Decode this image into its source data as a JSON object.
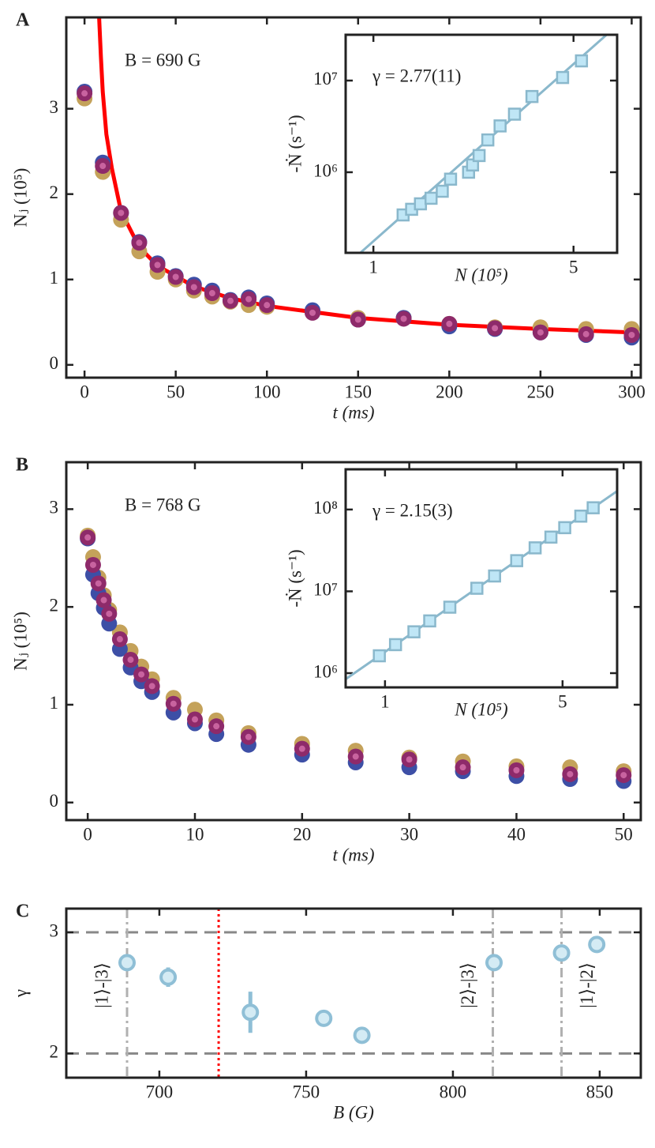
{
  "chart_data": [
    {
      "type": "scatter",
      "panel": "A",
      "annotation": "B = 690 G",
      "xlabel": "t (ms)",
      "ylabel": "Nⱼ (10⁵)",
      "xlim": [
        -10,
        305
      ],
      "ylim": [
        -0.15,
        4.07
      ],
      "xticks": [
        0,
        50,
        100,
        150,
        200,
        250,
        300
      ],
      "yticks": [
        0,
        1,
        2,
        3
      ],
      "series": [
        {
          "style": "line",
          "color": "#ff0000",
          "x": [
            8,
            9,
            10,
            12,
            15,
            20,
            30,
            40,
            60,
            80,
            100,
            150,
            200,
            250,
            300
          ],
          "values": [
            4.07,
            3.6,
            3.2,
            2.7,
            2.3,
            1.8,
            1.38,
            1.16,
            0.92,
            0.78,
            0.69,
            0.55,
            0.47,
            0.42,
            0.38
          ]
        },
        {
          "marker": "circle",
          "color": "#c4a25a",
          "x": [
            0,
            10,
            20,
            30,
            40,
            50,
            60,
            70,
            80,
            90,
            100,
            125,
            150,
            175,
            200,
            225,
            250,
            275,
            300
          ],
          "values": [
            3.12,
            2.26,
            1.7,
            1.33,
            1.09,
            1.0,
            0.87,
            0.8,
            0.74,
            0.7,
            0.68,
            0.62,
            0.55,
            0.55,
            0.48,
            0.44,
            0.44,
            0.42,
            0.42
          ]
        },
        {
          "marker": "circle",
          "color": "#3d4fa6",
          "x": [
            0,
            10,
            20,
            30,
            40,
            50,
            60,
            70,
            80,
            90,
            100,
            125,
            150,
            175,
            200,
            225,
            250,
            275,
            300
          ],
          "values": [
            3.2,
            2.37,
            1.78,
            1.44,
            1.19,
            1.04,
            0.94,
            0.87,
            0.76,
            0.79,
            0.72,
            0.64,
            0.53,
            0.55,
            0.45,
            0.42,
            0.38,
            0.35,
            0.32
          ]
        },
        {
          "marker": "circle",
          "color": "#8e2a6a",
          "center_color": "#c8639f",
          "x": [
            0,
            10,
            20,
            30,
            40,
            50,
            60,
            70,
            80,
            90,
            100,
            125,
            150,
            175,
            200,
            225,
            250,
            275,
            300
          ],
          "values": [
            3.18,
            2.33,
            1.78,
            1.43,
            1.17,
            1.03,
            0.91,
            0.84,
            0.75,
            0.77,
            0.7,
            0.61,
            0.53,
            0.54,
            0.48,
            0.43,
            0.38,
            0.36,
            0.35
          ]
        }
      ]
    },
    {
      "type": "scatter",
      "annotation": "γ = 2.77(11)",
      "xlabel": "N (10⁵)",
      "ylabel": "-Ṅ (s⁻¹)",
      "xscale": "log",
      "yscale": "log",
      "xlim": [
        0.8,
        7.1
      ],
      "ylim": [
        132000,
        31600000
      ],
      "xticks": [
        1,
        5
      ],
      "yticks": [
        {
          "value": 1000000,
          "label": "10⁶"
        },
        {
          "value": 10000000,
          "label": "10⁷"
        }
      ],
      "series": [
        {
          "style": "line",
          "color": "#8ab8cc",
          "x": [
            0.9,
            6.52
          ],
          "values": [
            132000,
            31600000
          ]
        },
        {
          "marker": "square",
          "color": "#8ab8cc",
          "center_color": "#bfe6f6",
          "x": [
            1.27,
            1.36,
            1.46,
            1.59,
            1.74,
            1.86,
            2.15,
            2.22,
            2.34,
            2.51,
            2.77,
            3.11,
            3.58,
            4.58,
            5.33
          ],
          "values": [
            342000,
            394000,
            452000,
            520000,
            620000,
            840000,
            1000000,
            1200000,
            1520000,
            2250000,
            3200000,
            4300000,
            6700000,
            10800000,
            16400000
          ]
        }
      ]
    },
    {
      "type": "scatter",
      "panel": "B",
      "annotation": "B = 768 G",
      "xlabel": "t (ms)",
      "ylabel": "Nⱼ (10⁵)",
      "xlim": [
        -2,
        51.6
      ],
      "ylim": [
        -0.18,
        3.48
      ],
      "xticks": [
        0,
        10,
        20,
        30,
        40,
        50
      ],
      "yticks": [
        0,
        1,
        2,
        3
      ],
      "series": [
        {
          "marker": "circle",
          "color": "#c4a25a",
          "x": [
            0,
            0.5,
            1,
            1.5,
            2,
            3,
            4,
            5,
            6,
            8,
            10,
            12,
            15,
            20,
            25,
            30,
            35,
            40,
            45,
            50
          ],
          "values": [
            2.73,
            2.51,
            2.3,
            2.12,
            1.97,
            1.74,
            1.55,
            1.39,
            1.26,
            1.07,
            0.95,
            0.84,
            0.71,
            0.6,
            0.53,
            0.46,
            0.42,
            0.37,
            0.36,
            0.32
          ]
        },
        {
          "marker": "circle",
          "color": "#3d4fa6",
          "x": [
            0,
            0.5,
            1,
            1.5,
            2,
            3,
            4,
            5,
            6,
            8,
            10,
            12,
            15,
            20,
            25,
            30,
            35,
            40,
            45,
            50
          ],
          "values": [
            2.7,
            2.33,
            2.14,
            1.99,
            1.83,
            1.57,
            1.38,
            1.24,
            1.13,
            0.92,
            0.81,
            0.7,
            0.59,
            0.49,
            0.41,
            0.36,
            0.32,
            0.27,
            0.24,
            0.22
          ]
        },
        {
          "marker": "circle",
          "color": "#8e2a6a",
          "center_color": "#c8639f",
          "x": [
            0,
            0.5,
            1,
            1.5,
            2,
            3,
            4,
            5,
            6,
            8,
            10,
            12,
            15,
            20,
            25,
            30,
            35,
            40,
            45,
            50
          ],
          "values": [
            2.71,
            2.43,
            2.24,
            2.07,
            1.93,
            1.67,
            1.46,
            1.31,
            1.19,
            1.01,
            0.85,
            0.78,
            0.67,
            0.55,
            0.47,
            0.44,
            0.36,
            0.33,
            0.29,
            0.28
          ]
        }
      ]
    },
    {
      "type": "scatter",
      "annotation": "γ = 2.15(3)",
      "xlabel": "N (10⁵)",
      "ylabel": "-Ṅ (s⁻¹)",
      "xscale": "log",
      "yscale": "log",
      "xlim": [
        0.7,
        8.2
      ],
      "ylim": [
        670000,
        310000000
      ],
      "xticks": [
        1,
        5
      ],
      "yticks": [
        {
          "value": 1000000,
          "label": "10⁶"
        },
        {
          "value": 10000000,
          "label": "10⁷"
        },
        {
          "value": 100000000,
          "label": "10⁸"
        }
      ],
      "series": [
        {
          "style": "line",
          "color": "#8ab8cc",
          "x": [
            0.7,
            8.2
          ],
          "values": [
            845000,
            168000000
          ]
        },
        {
          "marker": "square",
          "color": "#8ab8cc",
          "center_color": "#bfe6f6",
          "x": [
            0.95,
            1.1,
            1.3,
            1.5,
            1.8,
            2.3,
            2.7,
            3.3,
            3.9,
            4.5,
            5.1,
            5.9,
            6.6
          ],
          "values": [
            1630000,
            2230000,
            3200000,
            4350000,
            6400000,
            10900000,
            15400000,
            23700000,
            34000000,
            46000000,
            60000000,
            83000000,
            105000000
          ]
        }
      ]
    },
    {
      "type": "errorbar",
      "panel": "C",
      "xlabel": "B (G)",
      "ylabel": "γ",
      "grid": "dashed",
      "xlim": [
        668.3,
        864
      ],
      "ylim": [
        1.8,
        3.196
      ],
      "xticks": [
        700,
        750,
        800,
        850
      ],
      "yticks": [
        2,
        3
      ],
      "vlines": [
        {
          "x": 689,
          "label": "|1⟩-|3⟩",
          "style": "dashdot",
          "color": "#b0b0b0"
        },
        {
          "x": 720.2,
          "style": "dotted",
          "color": "#ff0000"
        },
        {
          "x": 813.6,
          "label": "|2⟩-|3⟩",
          "style": "dashdot",
          "color": "#b0b0b0"
        },
        {
          "x": 837,
          "label": "|1⟩-|2⟩",
          "style": "dashdot",
          "color": "#b0b0b0"
        }
      ],
      "series": [
        {
          "marker": "circle",
          "color": "#8fbfd6",
          "center_color": "#d4ebf4",
          "x": [
            689,
            703,
            731,
            756,
            769,
            814,
            837,
            849
          ],
          "values": [
            2.75,
            2.63,
            2.34,
            2.29,
            2.15,
            2.75,
            2.83,
            2.9
          ],
          "errors": [
            0.04,
            0.08,
            0.17,
            0.04,
            0.03,
            0.03,
            0.03,
            0.03
          ]
        }
      ]
    }
  ]
}
